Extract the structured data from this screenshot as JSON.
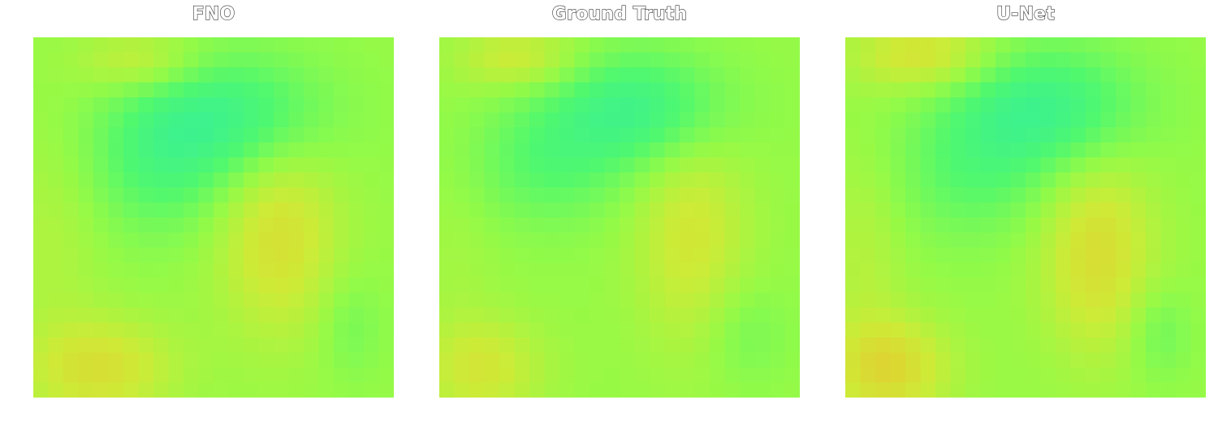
{
  "chart_data": [
    {
      "type": "heatmap",
      "title": "FNO",
      "grid": false,
      "axes": false,
      "colormap": "nipy_spectral-like (cyan-green to yellow-orange)",
      "resolution": [
        24,
        24
      ],
      "field": {
        "base": 0.5,
        "components": [
          {
            "cx": 0.3,
            "cy": 0.07,
            "sx": 0.12,
            "sy": 0.06,
            "a": 0.22
          },
          {
            "cx": 0.55,
            "cy": 0.22,
            "sx": 0.18,
            "sy": 0.12,
            "a": -0.38
          },
          {
            "cx": 0.35,
            "cy": 0.35,
            "sx": 0.14,
            "sy": 0.14,
            "a": -0.25
          },
          {
            "cx": 0.68,
            "cy": 0.55,
            "sx": 0.12,
            "sy": 0.2,
            "a": 0.3
          },
          {
            "cx": 0.18,
            "cy": 0.92,
            "sx": 0.15,
            "sy": 0.1,
            "a": 0.3
          },
          {
            "cx": 0.88,
            "cy": 0.8,
            "sx": 0.06,
            "sy": 0.1,
            "a": -0.12
          },
          {
            "cx": 0.05,
            "cy": 0.55,
            "sx": 0.1,
            "sy": 0.2,
            "a": 0.1
          }
        ]
      }
    },
    {
      "type": "heatmap",
      "title": "Ground Truth",
      "grid": false,
      "axes": false,
      "colormap": "nipy_spectral-like (cyan-green to yellow-orange)",
      "resolution": [
        24,
        24
      ],
      "field": {
        "base": 0.5,
        "components": [
          {
            "cx": 0.22,
            "cy": 0.06,
            "sx": 0.12,
            "sy": 0.06,
            "a": 0.24
          },
          {
            "cx": 0.55,
            "cy": 0.2,
            "sx": 0.17,
            "sy": 0.11,
            "a": -0.4
          },
          {
            "cx": 0.3,
            "cy": 0.35,
            "sx": 0.15,
            "sy": 0.12,
            "a": -0.22
          },
          {
            "cx": 0.7,
            "cy": 0.55,
            "sx": 0.11,
            "sy": 0.22,
            "a": 0.25
          },
          {
            "cx": 0.12,
            "cy": 0.92,
            "sx": 0.12,
            "sy": 0.1,
            "a": 0.25
          },
          {
            "cx": 0.85,
            "cy": 0.82,
            "sx": 0.08,
            "sy": 0.1,
            "a": -0.12
          },
          {
            "cx": 0.05,
            "cy": 0.6,
            "sx": 0.08,
            "sy": 0.2,
            "a": 0.05
          }
        ]
      }
    },
    {
      "type": "heatmap",
      "title": "U-Net",
      "grid": false,
      "axes": false,
      "colormap": "nipy_spectral-like (cyan-green to yellow-orange)",
      "resolution": [
        24,
        24
      ],
      "field": {
        "base": 0.5,
        "components": [
          {
            "cx": 0.22,
            "cy": 0.05,
            "sx": 0.14,
            "sy": 0.07,
            "a": 0.3
          },
          {
            "cx": 0.55,
            "cy": 0.2,
            "sx": 0.18,
            "sy": 0.12,
            "a": -0.42
          },
          {
            "cx": 0.35,
            "cy": 0.38,
            "sx": 0.15,
            "sy": 0.13,
            "a": -0.2
          },
          {
            "cx": 0.7,
            "cy": 0.6,
            "sx": 0.11,
            "sy": 0.2,
            "a": 0.32
          },
          {
            "cx": 0.12,
            "cy": 0.92,
            "sx": 0.12,
            "sy": 0.1,
            "a": 0.35
          },
          {
            "cx": 0.87,
            "cy": 0.82,
            "sx": 0.06,
            "sy": 0.09,
            "a": -0.15
          },
          {
            "cx": 0.05,
            "cy": 0.6,
            "sx": 0.08,
            "sy": 0.2,
            "a": 0.12
          }
        ]
      }
    }
  ]
}
